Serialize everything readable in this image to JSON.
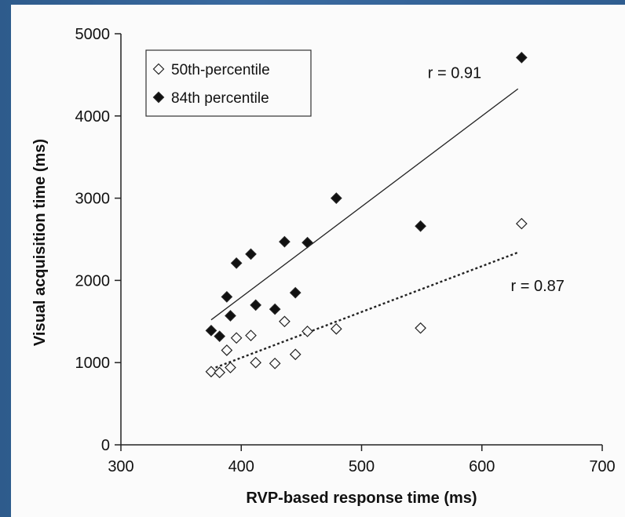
{
  "chart_data": {
    "type": "scatter",
    "xlabel": "RVP-based response time (ms)",
    "ylabel": "Visual acquisition time (ms)",
    "xlim": [
      300,
      700
    ],
    "ylim": [
      0,
      5000
    ],
    "xticks": [
      300,
      400,
      500,
      600,
      700
    ],
    "yticks": [
      0,
      1000,
      2000,
      3000,
      4000,
      5000
    ],
    "grid": false,
    "legend_position": "top-left",
    "series": [
      {
        "name": "50th-percentile",
        "marker": "open-diamond",
        "color": "#111111",
        "points": [
          [
            375,
            890
          ],
          [
            382,
            880
          ],
          [
            388,
            1150
          ],
          [
            391,
            940
          ],
          [
            396,
            1300
          ],
          [
            408,
            1330
          ],
          [
            412,
            1000
          ],
          [
            428,
            990
          ],
          [
            436,
            1500
          ],
          [
            445,
            1100
          ],
          [
            455,
            1380
          ],
          [
            479,
            1410
          ],
          [
            549,
            1420
          ],
          [
            633,
            2690
          ]
        ],
        "fit": {
          "style": "dotted",
          "x": [
            375,
            630
          ],
          "y": [
            920,
            2340
          ],
          "r_label": "r = 0.87"
        }
      },
      {
        "name": "84th percentile",
        "marker": "filled-diamond",
        "color": "#111111",
        "points": [
          [
            375,
            1390
          ],
          [
            382,
            1320
          ],
          [
            388,
            1800
          ],
          [
            391,
            1570
          ],
          [
            396,
            2210
          ],
          [
            408,
            2320
          ],
          [
            412,
            1700
          ],
          [
            428,
            1650
          ],
          [
            436,
            2470
          ],
          [
            445,
            1850
          ],
          [
            455,
            2460
          ],
          [
            479,
            3000
          ],
          [
            549,
            2660
          ],
          [
            633,
            4710
          ]
        ],
        "fit": {
          "style": "solid",
          "x": [
            375,
            630
          ],
          "y": [
            1520,
            4330
          ],
          "r_label": "r = 0.91"
        }
      }
    ]
  }
}
